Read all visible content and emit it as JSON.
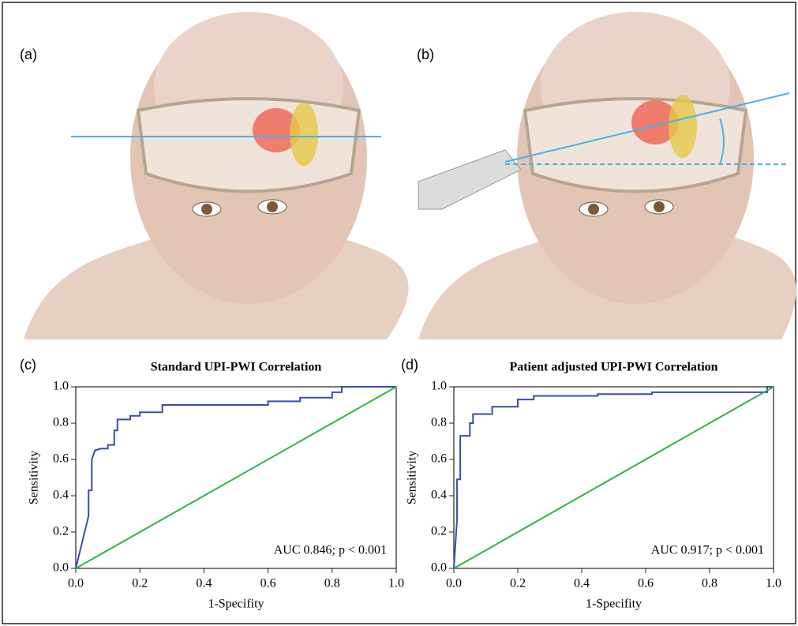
{
  "panel_labels": [
    "(a)",
    "(b)",
    "(c)",
    "(d)"
  ],
  "chart_data": [
    {
      "type": "line",
      "title": "Standard UPI-PWI Correlation",
      "x_label": "1-Specifity",
      "y_label": "Sensitivity",
      "annotation": "AUC 0.846; p < 0.001",
      "xlim": [
        0,
        1
      ],
      "ylim": [
        0,
        1
      ],
      "xticks": [
        {
          "value": 0,
          "label": "0.0"
        },
        0.2,
        0.4,
        0.6,
        0.8,
        {
          "value": 1,
          "label": "1.0"
        }
      ],
      "yticks": [
        {
          "value": 0,
          "label": "0.0"
        },
        0.2,
        0.4,
        0.6,
        0.8,
        {
          "value": 1,
          "label": "1.0"
        }
      ],
      "series": [
        {
          "color": "#3a4bb0",
          "x": [
            0,
            0.04,
            0.04,
            0.05,
            0.05,
            0.06,
            0.08,
            0.1,
            0.1,
            0.12,
            0.12,
            0.13,
            0.13,
            0.17,
            0.17,
            0.2,
            0.2,
            0.27,
            0.27,
            0.6,
            0.6,
            0.7,
            0.7,
            0.8,
            0.8,
            0.83,
            0.83,
            1
          ],
          "values": [
            0,
            0.29,
            0.43,
            0.43,
            0.6,
            0.65,
            0.66,
            0.66,
            0.68,
            0.68,
            0.76,
            0.76,
            0.82,
            0.82,
            0.84,
            0.84,
            0.86,
            0.86,
            0.9,
            0.9,
            0.92,
            0.92,
            0.94,
            0.94,
            0.97,
            0.97,
            1,
            1
          ]
        },
        {
          "color": "#2fb34a",
          "x": [
            0,
            1
          ],
          "values": [
            0,
            1
          ]
        }
      ]
    },
    {
      "type": "line",
      "title": "Patient adjusted UPI-PWI Correlation",
      "x_label": "1-Specifity",
      "y_label": "Sensitivity",
      "annotation": "AUC 0.917; p < 0.001",
      "xlim": [
        0,
        1
      ],
      "ylim": [
        0,
        1
      ],
      "xticks": [
        {
          "value": 0,
          "label": "0.0"
        },
        0.2,
        0.4,
        0.6,
        0.8,
        {
          "value": 1,
          "label": "1.0"
        }
      ],
      "yticks": [
        {
          "value": 0,
          "label": "0.0"
        },
        0.2,
        0.4,
        0.6,
        0.8,
        {
          "value": 1,
          "label": "1.0"
        }
      ],
      "series": [
        {
          "color": "#3a4bb0",
          "x": [
            0,
            0.01,
            0.01,
            0.02,
            0.02,
            0.05,
            0.05,
            0.06,
            0.06,
            0.12,
            0.12,
            0.2,
            0.2,
            0.25,
            0.25,
            0.45,
            0.45,
            0.62,
            0.62,
            0.98,
            0.98,
            1
          ],
          "values": [
            0,
            0.27,
            0.49,
            0.49,
            0.73,
            0.73,
            0.8,
            0.8,
            0.85,
            0.85,
            0.89,
            0.89,
            0.93,
            0.93,
            0.95,
            0.95,
            0.96,
            0.96,
            0.97,
            0.97,
            1,
            1
          ]
        },
        {
          "color": "#2fb34a",
          "x": [
            0,
            1
          ],
          "values": [
            0,
            1
          ]
        }
      ]
    }
  ]
}
